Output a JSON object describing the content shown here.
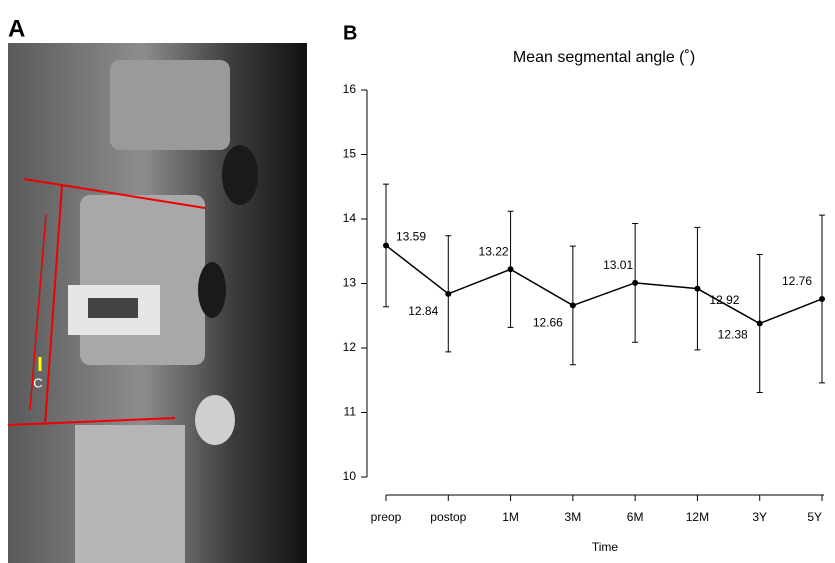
{
  "panels": {
    "left_label": "A",
    "right_label": "B",
    "image_label": "C"
  },
  "chart_data": {
    "type": "line",
    "title": "Mean segmental angle (˚)",
    "x_label": "Time",
    "categories": [
      "preop",
      "postop",
      "1M",
      "3M",
      "6M",
      "12M",
      "3Y",
      "5Y"
    ],
    "values": [
      13.59,
      12.84,
      13.22,
      12.66,
      13.01,
      12.92,
      12.38,
      12.76
    ],
    "errors": [
      0.95,
      0.9,
      0.9,
      0.92,
      0.92,
      0.95,
      1.07,
      1.3
    ],
    "color": "#000000",
    "ylim": [
      10,
      16
    ],
    "yticks": [
      10,
      11,
      12,
      13,
      14,
      15,
      16
    ]
  }
}
